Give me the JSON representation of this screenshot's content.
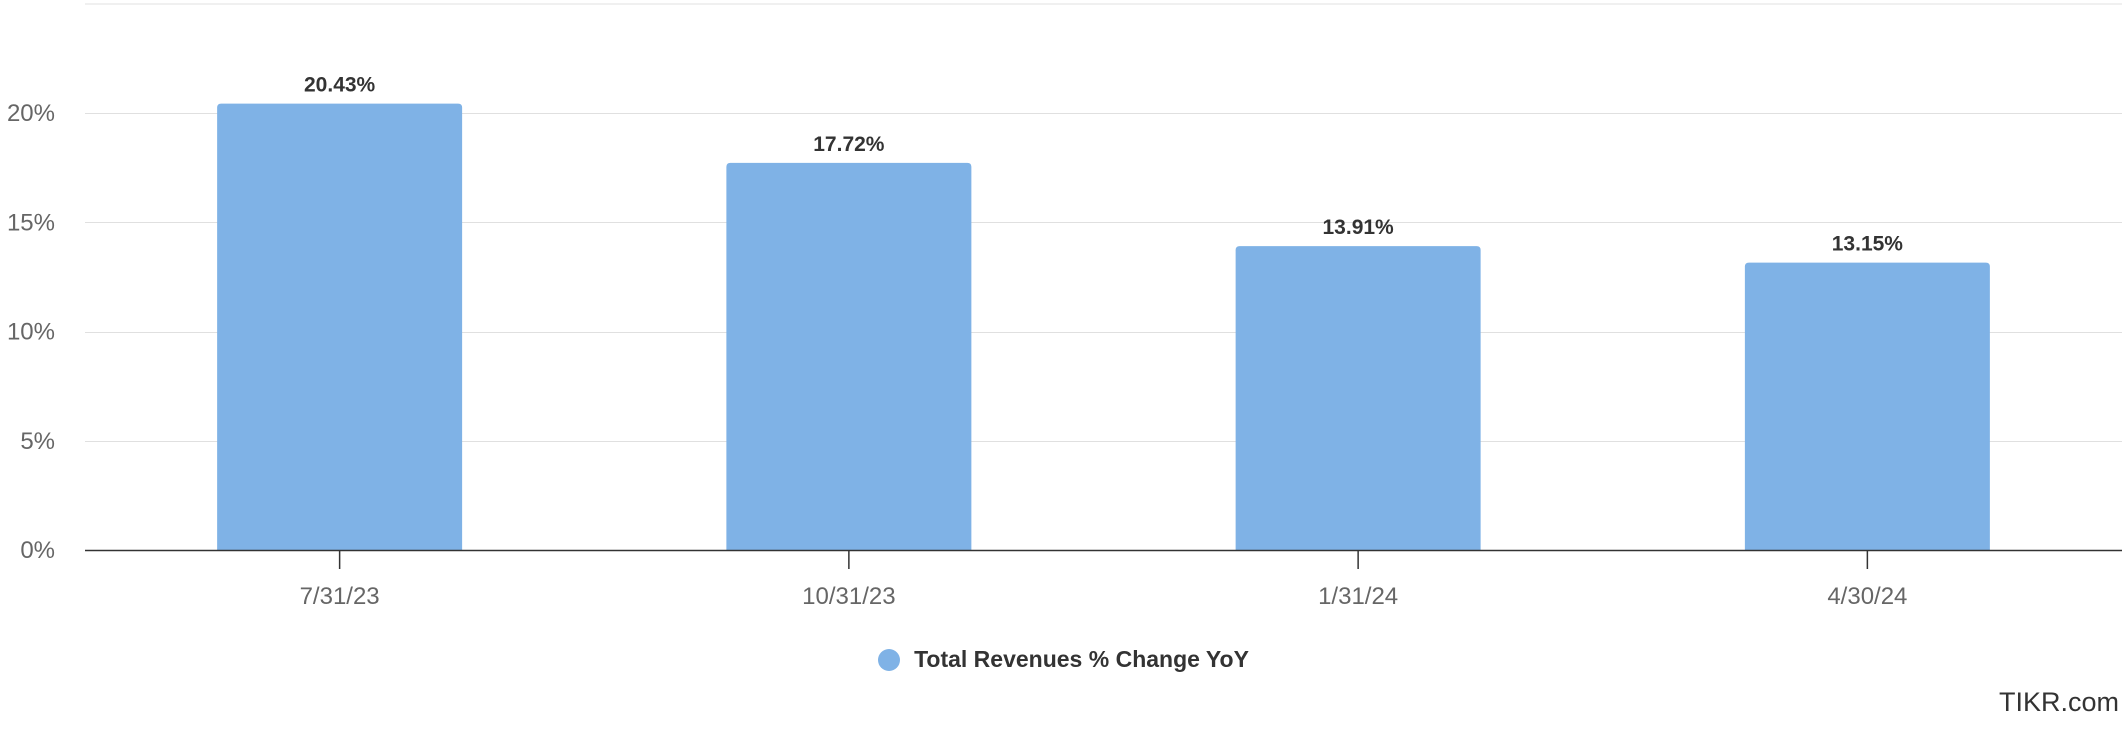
{
  "chart_data": {
    "type": "bar",
    "categories": [
      "7/31/23",
      "10/31/23",
      "1/31/24",
      "4/30/24"
    ],
    "series": [
      {
        "name": "Total Revenues % Change YoY",
        "values": [
          20.43,
          17.72,
          13.91,
          13.15
        ],
        "labels": [
          "20.43%",
          "17.72%",
          "13.91%",
          "13.15%"
        ],
        "color": "#7fb2e6"
      }
    ],
    "y_ticks": [
      0,
      5,
      10,
      15,
      20
    ],
    "y_tick_labels": [
      "0%",
      "5%",
      "10%",
      "15%",
      "20%"
    ],
    "ylim": [
      0,
      25
    ],
    "grid": true,
    "legend_position": "bottom-center"
  },
  "legend": {
    "label": "Total Revenues % Change YoY",
    "color": "#7fb2e6"
  },
  "watermark": "TIKR.com",
  "colors": {
    "bar": "#7fb2e6",
    "grid": "#e0e0e0",
    "axis": "#333333",
    "tick_text": "#666666",
    "label_text": "#333333"
  }
}
